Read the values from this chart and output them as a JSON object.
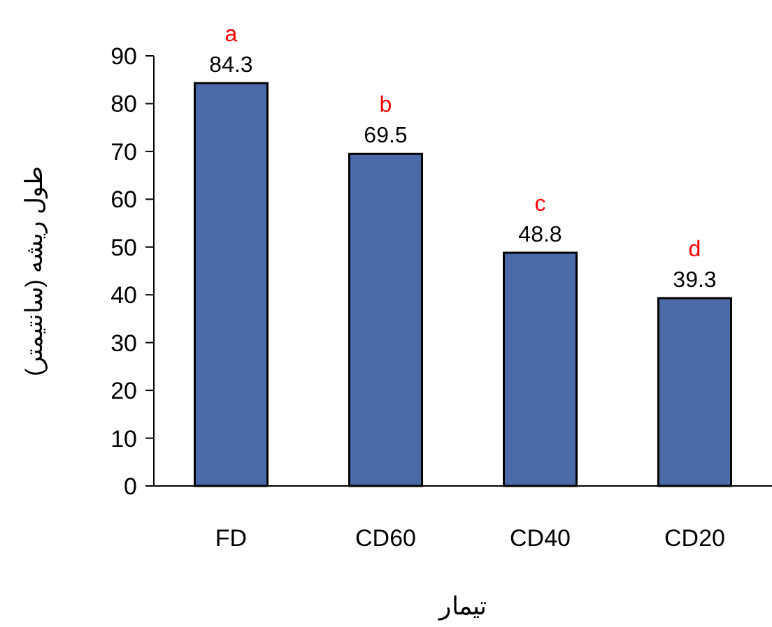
{
  "chart_data": {
    "type": "bar",
    "xlabel": "تیمار",
    "ylabel": "طول ریشه (سانتیمتر)",
    "categories": [
      "FD",
      "CD60",
      "CD40",
      "CD20"
    ],
    "values": [
      84.3,
      69.5,
      48.8,
      39.3
    ],
    "color": "#4a6aa8",
    "ylim": [
      0,
      90
    ],
    "yticks": [
      0,
      10,
      20,
      30,
      40,
      50,
      60,
      70,
      80,
      90
    ],
    "data_labels": true,
    "annotations": [
      {
        "text": "a",
        "x": "FD",
        "y": 84.3
      },
      {
        "text": "b",
        "x": "CD60",
        "y": 69.5
      },
      {
        "text": "c",
        "x": "CD40",
        "y": 48.8
      },
      {
        "text": "d",
        "x": "CD20",
        "y": 39.3
      }
    ]
  }
}
